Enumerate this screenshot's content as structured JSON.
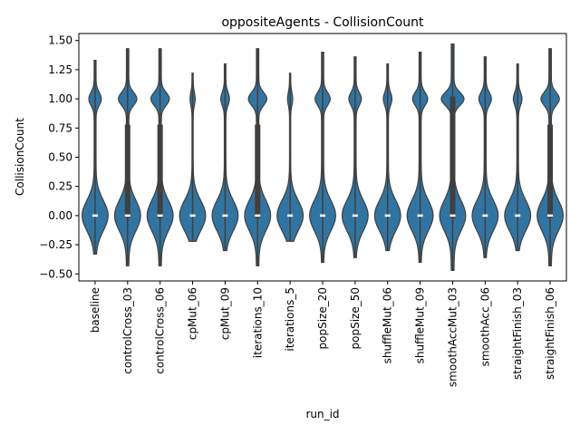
{
  "chart_data": {
    "type": "violin",
    "title": "oppositeAgents - CollisionCount",
    "xlabel": "run_id",
    "ylabel": "CollisionCount",
    "ylim": [
      -0.56,
      1.56
    ],
    "yticks": [
      -0.5,
      -0.25,
      0.0,
      0.25,
      0.5,
      0.75,
      1.0,
      1.25,
      1.5
    ],
    "ytick_labels": [
      "−0.50",
      "−0.25",
      "0.00",
      "0.25",
      "0.50",
      "0.75",
      "1.00",
      "1.25",
      "1.50"
    ],
    "grid": false,
    "color": "#3274a1",
    "inner_color": "#3f3f3f",
    "categories": [
      "baseline",
      "controlCross_03",
      "controlCross_06",
      "cpMut_06",
      "cpMut_09",
      "iterations_10",
      "iterations_5",
      "popSize_20",
      "popSize_50",
      "shuffleMut_06",
      "shuffleMut_09",
      "smoothAccMut_03",
      "smoothAcc_06",
      "straightFinish_03",
      "straightFinish_06"
    ],
    "violins": [
      {
        "ymin": -0.33,
        "ymax": 1.33,
        "w0": 0.45,
        "w1": 0.2,
        "median": 0,
        "q1": 0,
        "q3": 0
      },
      {
        "ymin": -0.43,
        "ymax": 1.43,
        "w0": 0.35,
        "w1": 0.24,
        "median": 0,
        "q1": 0,
        "q3": 0.78
      },
      {
        "ymin": -0.43,
        "ymax": 1.43,
        "w0": 0.35,
        "w1": 0.24,
        "median": 0,
        "q1": 0,
        "q3": 0.78
      },
      {
        "ymin": -0.22,
        "ymax": 1.22,
        "w0": 0.75,
        "w1": 0.12,
        "median": 0,
        "q1": 0,
        "q3": 0
      },
      {
        "ymin": -0.3,
        "ymax": 1.3,
        "w0": 0.55,
        "w1": 0.16,
        "median": 0,
        "q1": 0,
        "q3": 0
      },
      {
        "ymin": -0.43,
        "ymax": 1.43,
        "w0": 0.35,
        "w1": 0.24,
        "median": 0,
        "q1": 0,
        "q3": 0.78
      },
      {
        "ymin": -0.22,
        "ymax": 1.22,
        "w0": 0.75,
        "w1": 0.12,
        "median": 0,
        "q1": 0,
        "q3": 0
      },
      {
        "ymin": -0.4,
        "ymax": 1.4,
        "w0": 0.4,
        "w1": 0.22,
        "median": 0,
        "q1": 0,
        "q3": 0
      },
      {
        "ymin": -0.36,
        "ymax": 1.36,
        "w0": 0.45,
        "w1": 0.2,
        "median": 0,
        "q1": 0,
        "q3": 0
      },
      {
        "ymin": -0.3,
        "ymax": 1.3,
        "w0": 0.55,
        "w1": 0.16,
        "median": 0,
        "q1": 0,
        "q3": 0
      },
      {
        "ymin": -0.4,
        "ymax": 1.4,
        "w0": 0.4,
        "w1": 0.22,
        "median": 0,
        "q1": 0,
        "q3": 0
      },
      {
        "ymin": -0.47,
        "ymax": 1.47,
        "w0": 0.3,
        "w1": 0.26,
        "median": 0,
        "q1": 0,
        "q3": 1.02
      },
      {
        "ymin": -0.36,
        "ymax": 1.36,
        "w0": 0.45,
        "w1": 0.2,
        "median": 0,
        "q1": 0,
        "q3": 0
      },
      {
        "ymin": -0.3,
        "ymax": 1.3,
        "w0": 0.55,
        "w1": 0.16,
        "median": 0,
        "q1": 0,
        "q3": 0
      },
      {
        "ymin": -0.43,
        "ymax": 1.43,
        "w0": 0.35,
        "w1": 0.24,
        "median": 0,
        "q1": 0,
        "q3": 0.78
      }
    ]
  }
}
